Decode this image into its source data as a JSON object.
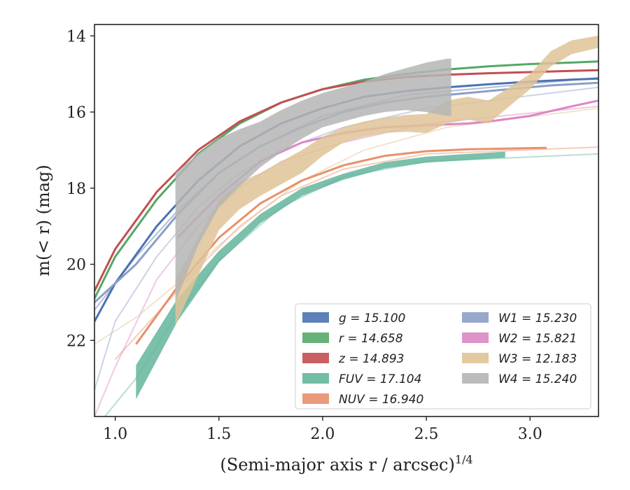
{
  "chart_data": {
    "type": "line",
    "xlabel": "(Semi-major axis r / arcsec)",
    "xlabel_exponent": "1/4",
    "ylabel": "m(< r) (mag)",
    "xlim": [
      0.9,
      3.33
    ],
    "ylim": [
      24,
      13.7
    ],
    "y_inverted": true,
    "grid": false,
    "legend_position": "lower-right",
    "x_ticks": [
      "1.0",
      "1.5",
      "2.0",
      "2.5",
      "3.0"
    ],
    "y_ticks": [
      "14",
      "16",
      "18",
      "20",
      "22"
    ],
    "series": [
      {
        "name": "g = 15.100",
        "color": "#4c72b0",
        "kind": "line",
        "x": [
          0.9,
          1.0,
          1.2,
          1.4,
          1.6,
          1.8,
          2.0,
          2.2,
          2.4,
          2.6,
          2.8,
          3.0,
          3.2,
          3.33
        ],
        "y": [
          21.5,
          20.5,
          19.0,
          17.8,
          16.9,
          16.3,
          15.9,
          15.6,
          15.45,
          15.35,
          15.27,
          15.2,
          15.15,
          15.12
        ]
      },
      {
        "name": "r = 14.658",
        "color": "#55a868",
        "kind": "line",
        "x": [
          0.9,
          1.0,
          1.2,
          1.4,
          1.6,
          1.8,
          2.0,
          2.2,
          2.4,
          2.6,
          2.8,
          3.0,
          3.2,
          3.33
        ],
        "y": [
          20.9,
          19.8,
          18.3,
          17.1,
          16.3,
          15.75,
          15.4,
          15.15,
          15.0,
          14.88,
          14.8,
          14.74,
          14.7,
          14.67
        ]
      },
      {
        "name": "z = 14.893",
        "color": "#c44e52",
        "kind": "line",
        "x": [
          0.9,
          1.0,
          1.2,
          1.4,
          1.6,
          1.8,
          2.0,
          2.2,
          2.4,
          2.6,
          2.8,
          3.0,
          3.2,
          3.33
        ],
        "y": [
          20.7,
          19.6,
          18.1,
          17.0,
          16.25,
          15.75,
          15.4,
          15.2,
          15.08,
          15.02,
          14.98,
          14.95,
          14.92,
          14.9
        ]
      },
      {
        "name": "FUV = 17.104",
        "color": "#64b59c",
        "kind": "band",
        "x": [
          1.1,
          1.3,
          1.5,
          1.7,
          1.9,
          2.1,
          2.3,
          2.5,
          2.7,
          2.88
        ],
        "y": [
          23.1,
          21.2,
          19.8,
          18.8,
          18.1,
          17.7,
          17.4,
          17.25,
          17.18,
          17.12
        ],
        "err": [
          0.45,
          0.3,
          0.15,
          0.12,
          0.1,
          0.08,
          0.08,
          0.08,
          0.08,
          0.08
        ]
      },
      {
        "name": "NUV = 16.940",
        "color": "#e8906b",
        "kind": "line",
        "x": [
          1.1,
          1.3,
          1.5,
          1.7,
          1.9,
          2.1,
          2.3,
          2.5,
          2.7,
          2.9,
          3.08
        ],
        "y": [
          22.1,
          20.6,
          19.3,
          18.4,
          17.8,
          17.4,
          17.15,
          17.03,
          16.98,
          16.96,
          16.94
        ]
      },
      {
        "name": "W1 = 15.230",
        "color": "#8c9ec8",
        "kind": "line",
        "x": [
          0.9,
          1.1,
          1.3,
          1.5,
          1.7,
          1.9,
          2.1,
          2.3,
          2.5,
          2.7,
          2.9,
          3.1,
          3.33
        ],
        "y": [
          21.0,
          20.0,
          18.7,
          17.6,
          16.9,
          16.4,
          16.0,
          15.75,
          15.6,
          15.5,
          15.4,
          15.3,
          15.23
        ]
      },
      {
        "name": "W2 = 15.821",
        "color": "#dc87c3",
        "kind": "line",
        "x": [
          1.3,
          1.5,
          1.7,
          1.9,
          2.1,
          2.3,
          2.5,
          2.7,
          2.8,
          3.0,
          3.2,
          3.33
        ],
        "y": [
          19.3,
          18.2,
          17.3,
          16.8,
          16.55,
          16.4,
          16.35,
          16.3,
          16.25,
          16.1,
          15.85,
          15.7
        ]
      },
      {
        "name": "W3 = 12.183",
        "color": "#dfc396",
        "kind": "band",
        "x": [
          1.29,
          1.4,
          1.5,
          1.6,
          1.7,
          1.8,
          1.9,
          2.0,
          2.1,
          2.2,
          2.3,
          2.4,
          2.5,
          2.6,
          2.7,
          2.8,
          2.9,
          3.0,
          3.1,
          3.2,
          3.33
        ],
        "y": [
          21.0,
          19.8,
          18.7,
          18.2,
          17.9,
          17.6,
          17.3,
          16.9,
          16.6,
          16.45,
          16.35,
          16.3,
          16.3,
          16.0,
          15.9,
          16.0,
          15.6,
          15.2,
          14.6,
          14.3,
          14.15
        ],
        "err": [
          0.6,
          0.5,
          0.4,
          0.35,
          0.3,
          0.3,
          0.3,
          0.25,
          0.2,
          0.2,
          0.2,
          0.22,
          0.25,
          0.3,
          0.3,
          0.3,
          0.25,
          0.2,
          0.2,
          0.18,
          0.16
        ]
      },
      {
        "name": "W4 = 15.240",
        "color": "#b5b5b5",
        "kind": "band",
        "x": [
          1.29,
          1.4,
          1.5,
          1.6,
          1.7,
          1.8,
          1.9,
          2.0,
          2.1,
          2.2,
          2.3,
          2.4,
          2.5,
          2.6,
          2.62
        ],
        "y": [
          19.3,
          18.3,
          17.6,
          17.2,
          16.85,
          16.5,
          16.2,
          15.95,
          15.8,
          15.65,
          15.5,
          15.4,
          15.35,
          15.35,
          15.35
        ],
        "err": [
          1.7,
          1.2,
          0.9,
          0.75,
          0.6,
          0.55,
          0.5,
          0.45,
          0.45,
          0.45,
          0.5,
          0.55,
          0.65,
          0.75,
          0.75
        ]
      }
    ],
    "faint_models": [
      {
        "color": "#4c72b0",
        "x": [
          0.9,
          1.1,
          1.3,
          1.5,
          1.7,
          2.0,
          2.4,
          3.33
        ],
        "y": [
          21.2,
          19.8,
          18.6,
          17.6,
          16.9,
          16.1,
          15.55,
          15.1
        ]
      },
      {
        "color": "#8c9ec8",
        "x": [
          0.9,
          1.0,
          1.2,
          1.4,
          1.6,
          1.8,
          2.1,
          2.5,
          3.33
        ],
        "y": [
          23.3,
          21.5,
          19.8,
          18.5,
          17.6,
          17.0,
          16.4,
          15.9,
          15.35
        ]
      },
      {
        "color": "#dc87c3",
        "x": [
          0.9,
          1.0,
          1.2,
          1.4,
          1.6,
          1.8,
          2.1,
          2.5,
          3.33
        ],
        "y": [
          24.0,
          22.7,
          20.4,
          19.0,
          18.0,
          17.3,
          16.8,
          16.3,
          15.85
        ]
      },
      {
        "color": "#64b59c",
        "x": [
          0.95,
          1.1,
          1.3,
          1.5,
          1.8,
          2.1,
          2.5,
          3.33
        ],
        "y": [
          24.0,
          23.0,
          21.3,
          19.9,
          18.5,
          17.7,
          17.3,
          17.1
        ]
      },
      {
        "color": "#e8906b",
        "x": [
          1.0,
          1.2,
          1.4,
          1.6,
          1.8,
          2.1,
          2.5,
          3.33
        ],
        "y": [
          22.5,
          21.3,
          20.1,
          19.0,
          18.2,
          17.5,
          17.1,
          16.92
        ]
      },
      {
        "color": "#dfc396",
        "x": [
          0.9,
          1.1,
          1.3,
          1.5,
          1.7,
          1.9,
          2.2,
          2.6,
          3.33
        ],
        "y": [
          22.1,
          21.4,
          20.5,
          19.5,
          18.6,
          17.8,
          17.0,
          16.4,
          15.9
        ]
      }
    ]
  }
}
